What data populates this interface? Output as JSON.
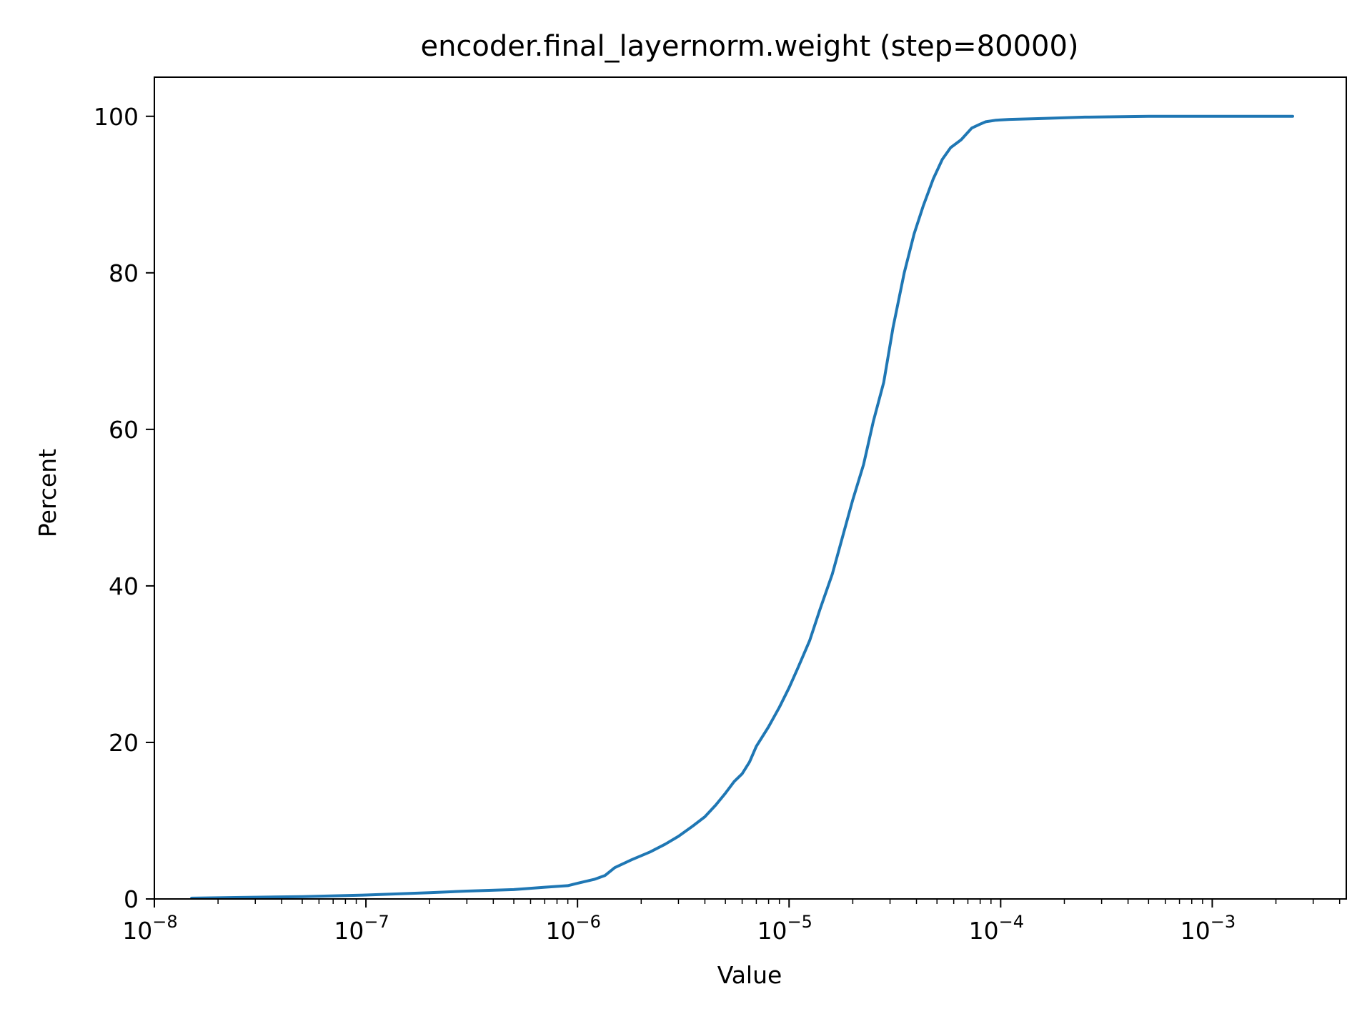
{
  "chart_data": {
    "type": "line",
    "title": "encoder.final_layernorm.weight (step=80000)",
    "xlabel": "Value",
    "ylabel": "Percent",
    "xscale": "log",
    "xlim": [
      1e-08,
      0.0043
    ],
    "ylim": [
      0,
      105
    ],
    "grid": false,
    "legend": "none",
    "x_ticks": [
      {
        "base": "10",
        "exp": "−8",
        "value": 1e-08
      },
      {
        "base": "10",
        "exp": "−7",
        "value": 1e-07
      },
      {
        "base": "10",
        "exp": "−6",
        "value": 1e-06
      },
      {
        "base": "10",
        "exp": "−5",
        "value": 1e-05
      },
      {
        "base": "10",
        "exp": "−4",
        "value": 0.0001
      },
      {
        "base": "10",
        "exp": "−3",
        "value": 0.001
      }
    ],
    "y_ticks": [
      0,
      20,
      40,
      60,
      80,
      100
    ],
    "series": [
      {
        "color": "#1f77b4",
        "x": [
          1.5e-08,
          5e-08,
          1e-07,
          2e-07,
          3e-07,
          5e-07,
          7e-07,
          9e-07,
          1e-06,
          1.2e-06,
          1.35e-06,
          1.5e-06,
          1.8e-06,
          2.2e-06,
          2.6e-06,
          3e-06,
          3.5e-06,
          4e-06,
          4.5e-06,
          5e-06,
          5.5e-06,
          6e-06,
          6.5e-06,
          7e-06,
          8e-06,
          9e-06,
          1e-05,
          1.1e-05,
          1.25e-05,
          1.4e-05,
          1.6e-05,
          1.8e-05,
          2e-05,
          2.25e-05,
          2.5e-05,
          2.8e-05,
          3.1e-05,
          3.5e-05,
          3.9e-05,
          4.3e-05,
          4.8e-05,
          5.3e-05,
          5.8e-05,
          6.5e-05,
          7.3e-05,
          8e-05,
          8.5e-05,
          9.5e-05,
          0.00011,
          0.00015,
          0.00025,
          0.0005,
          0.001,
          0.0024
        ],
        "y": [
          0.1,
          0.3,
          0.5,
          0.8,
          1.0,
          1.2,
          1.5,
          1.7,
          2.0,
          2.5,
          3.0,
          4.0,
          5.0,
          6.0,
          7.0,
          8.0,
          9.3,
          10.5,
          12.0,
          13.5,
          15.0,
          16.0,
          17.5,
          19.5,
          22.0,
          24.5,
          27.0,
          29.5,
          33.0,
          37.0,
          41.5,
          46.5,
          51.0,
          55.5,
          61.0,
          66.0,
          73.0,
          80.0,
          85.0,
          88.5,
          92.0,
          94.5,
          96.0,
          97.0,
          98.5,
          99.0,
          99.3,
          99.5,
          99.6,
          99.7,
          99.9,
          100.0,
          100.0,
          100.0
        ]
      }
    ]
  }
}
